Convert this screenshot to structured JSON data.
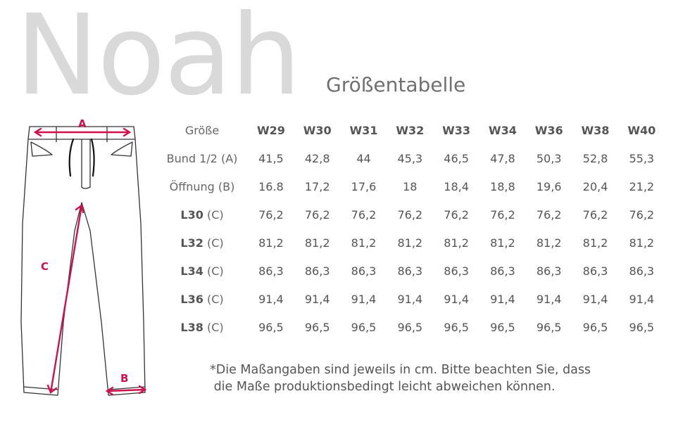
{
  "brand": "Noah",
  "subtitle": "Größentabelle",
  "diagram": {
    "label_a": "A",
    "label_b": "B",
    "label_c": "C",
    "accent": "#d0104c"
  },
  "table": {
    "corner": "Größe",
    "sizes": [
      "W29",
      "W30",
      "W31",
      "W32",
      "W33",
      "W34",
      "W36",
      "W38",
      "W40"
    ],
    "rows": [
      {
        "label_bold": "",
        "label_rest": "Bund 1/2 (A)",
        "values": [
          "41,5",
          "42,8",
          "44",
          "45,3",
          "46,5",
          "47,8",
          "50,3",
          "52,8",
          "55,3"
        ]
      },
      {
        "label_bold": "",
        "label_rest": "Öffnung (B)",
        "values": [
          "16.8",
          "17,2",
          "17,6",
          "18",
          "18,4",
          "18,8",
          "19,6",
          "20,4",
          "21,2"
        ]
      },
      {
        "label_bold": "L30",
        "label_rest": " (C)",
        "values": [
          "76,2",
          "76,2",
          "76,2",
          "76,2",
          "76,2",
          "76,2",
          "76,2",
          "76,2",
          "76,2"
        ]
      },
      {
        "label_bold": "L32",
        "label_rest": " (C)",
        "values": [
          "81,2",
          "81,2",
          "81,2",
          "81,2",
          "81,2",
          "81,2",
          "81,2",
          "81,2",
          "81,2"
        ]
      },
      {
        "label_bold": "L34",
        "label_rest": " (C)",
        "values": [
          "86,3",
          "86,3",
          "86,3",
          "86,3",
          "86,3",
          "86,3",
          "86,3",
          "86,3",
          "86,3"
        ]
      },
      {
        "label_bold": "L36",
        "label_rest": " (C)",
        "values": [
          "91,4",
          "91,4",
          "91,4",
          "91,4",
          "91,4",
          "91,4",
          "91,4",
          "91,4",
          "91,4"
        ]
      },
      {
        "label_bold": "L38",
        "label_rest": " (C)",
        "values": [
          "96,5",
          "96,5",
          "96,5",
          "96,5",
          "96,5",
          "96,5",
          "96,5",
          "96,5",
          "96,5"
        ]
      }
    ]
  },
  "note": {
    "line1": "*Die Maßangaben sind jeweils in cm. Bitte beachten Sie, dass",
    "line2": " die Maße produktionsbedingt leicht abweichen können."
  }
}
